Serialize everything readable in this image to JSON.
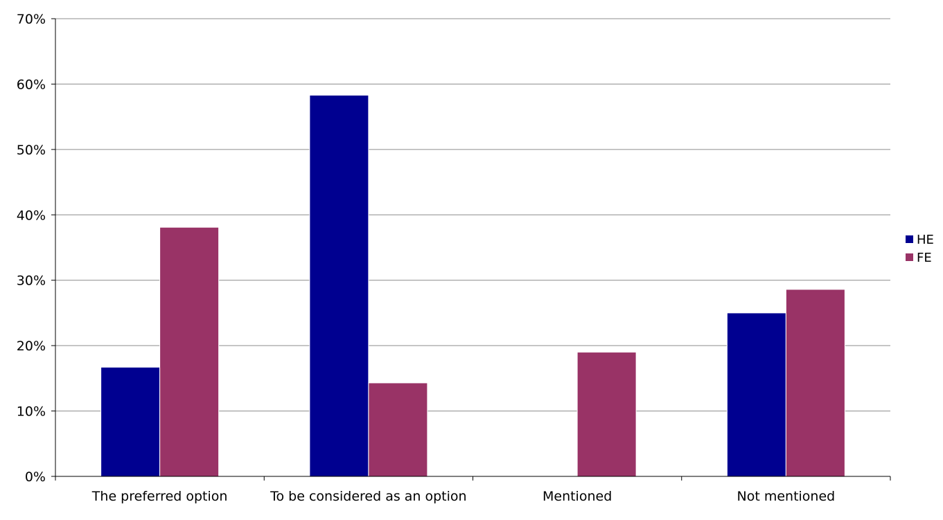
{
  "chart_data": {
    "type": "bar",
    "title": "",
    "xlabel": "",
    "ylabel": "",
    "categories": [
      "The preferred option",
      "To be considered as an option",
      "Mentioned",
      "Not mentioned"
    ],
    "series": [
      {
        "name": "HE",
        "color": "#000090",
        "values": [
          16.7,
          58.3,
          0,
          25.0
        ]
      },
      {
        "name": "FE",
        "color": "#993366",
        "values": [
          38.1,
          14.3,
          19.0,
          28.6
        ]
      }
    ],
    "ylim": [
      0,
      70
    ],
    "y_ticks": [
      0,
      10,
      20,
      30,
      40,
      50,
      60,
      70
    ],
    "y_tick_labels": [
      "0%",
      "10%",
      "20%",
      "30%",
      "40%",
      "50%",
      "60%",
      "70%"
    ],
    "grid": true,
    "legend_position": "right"
  }
}
